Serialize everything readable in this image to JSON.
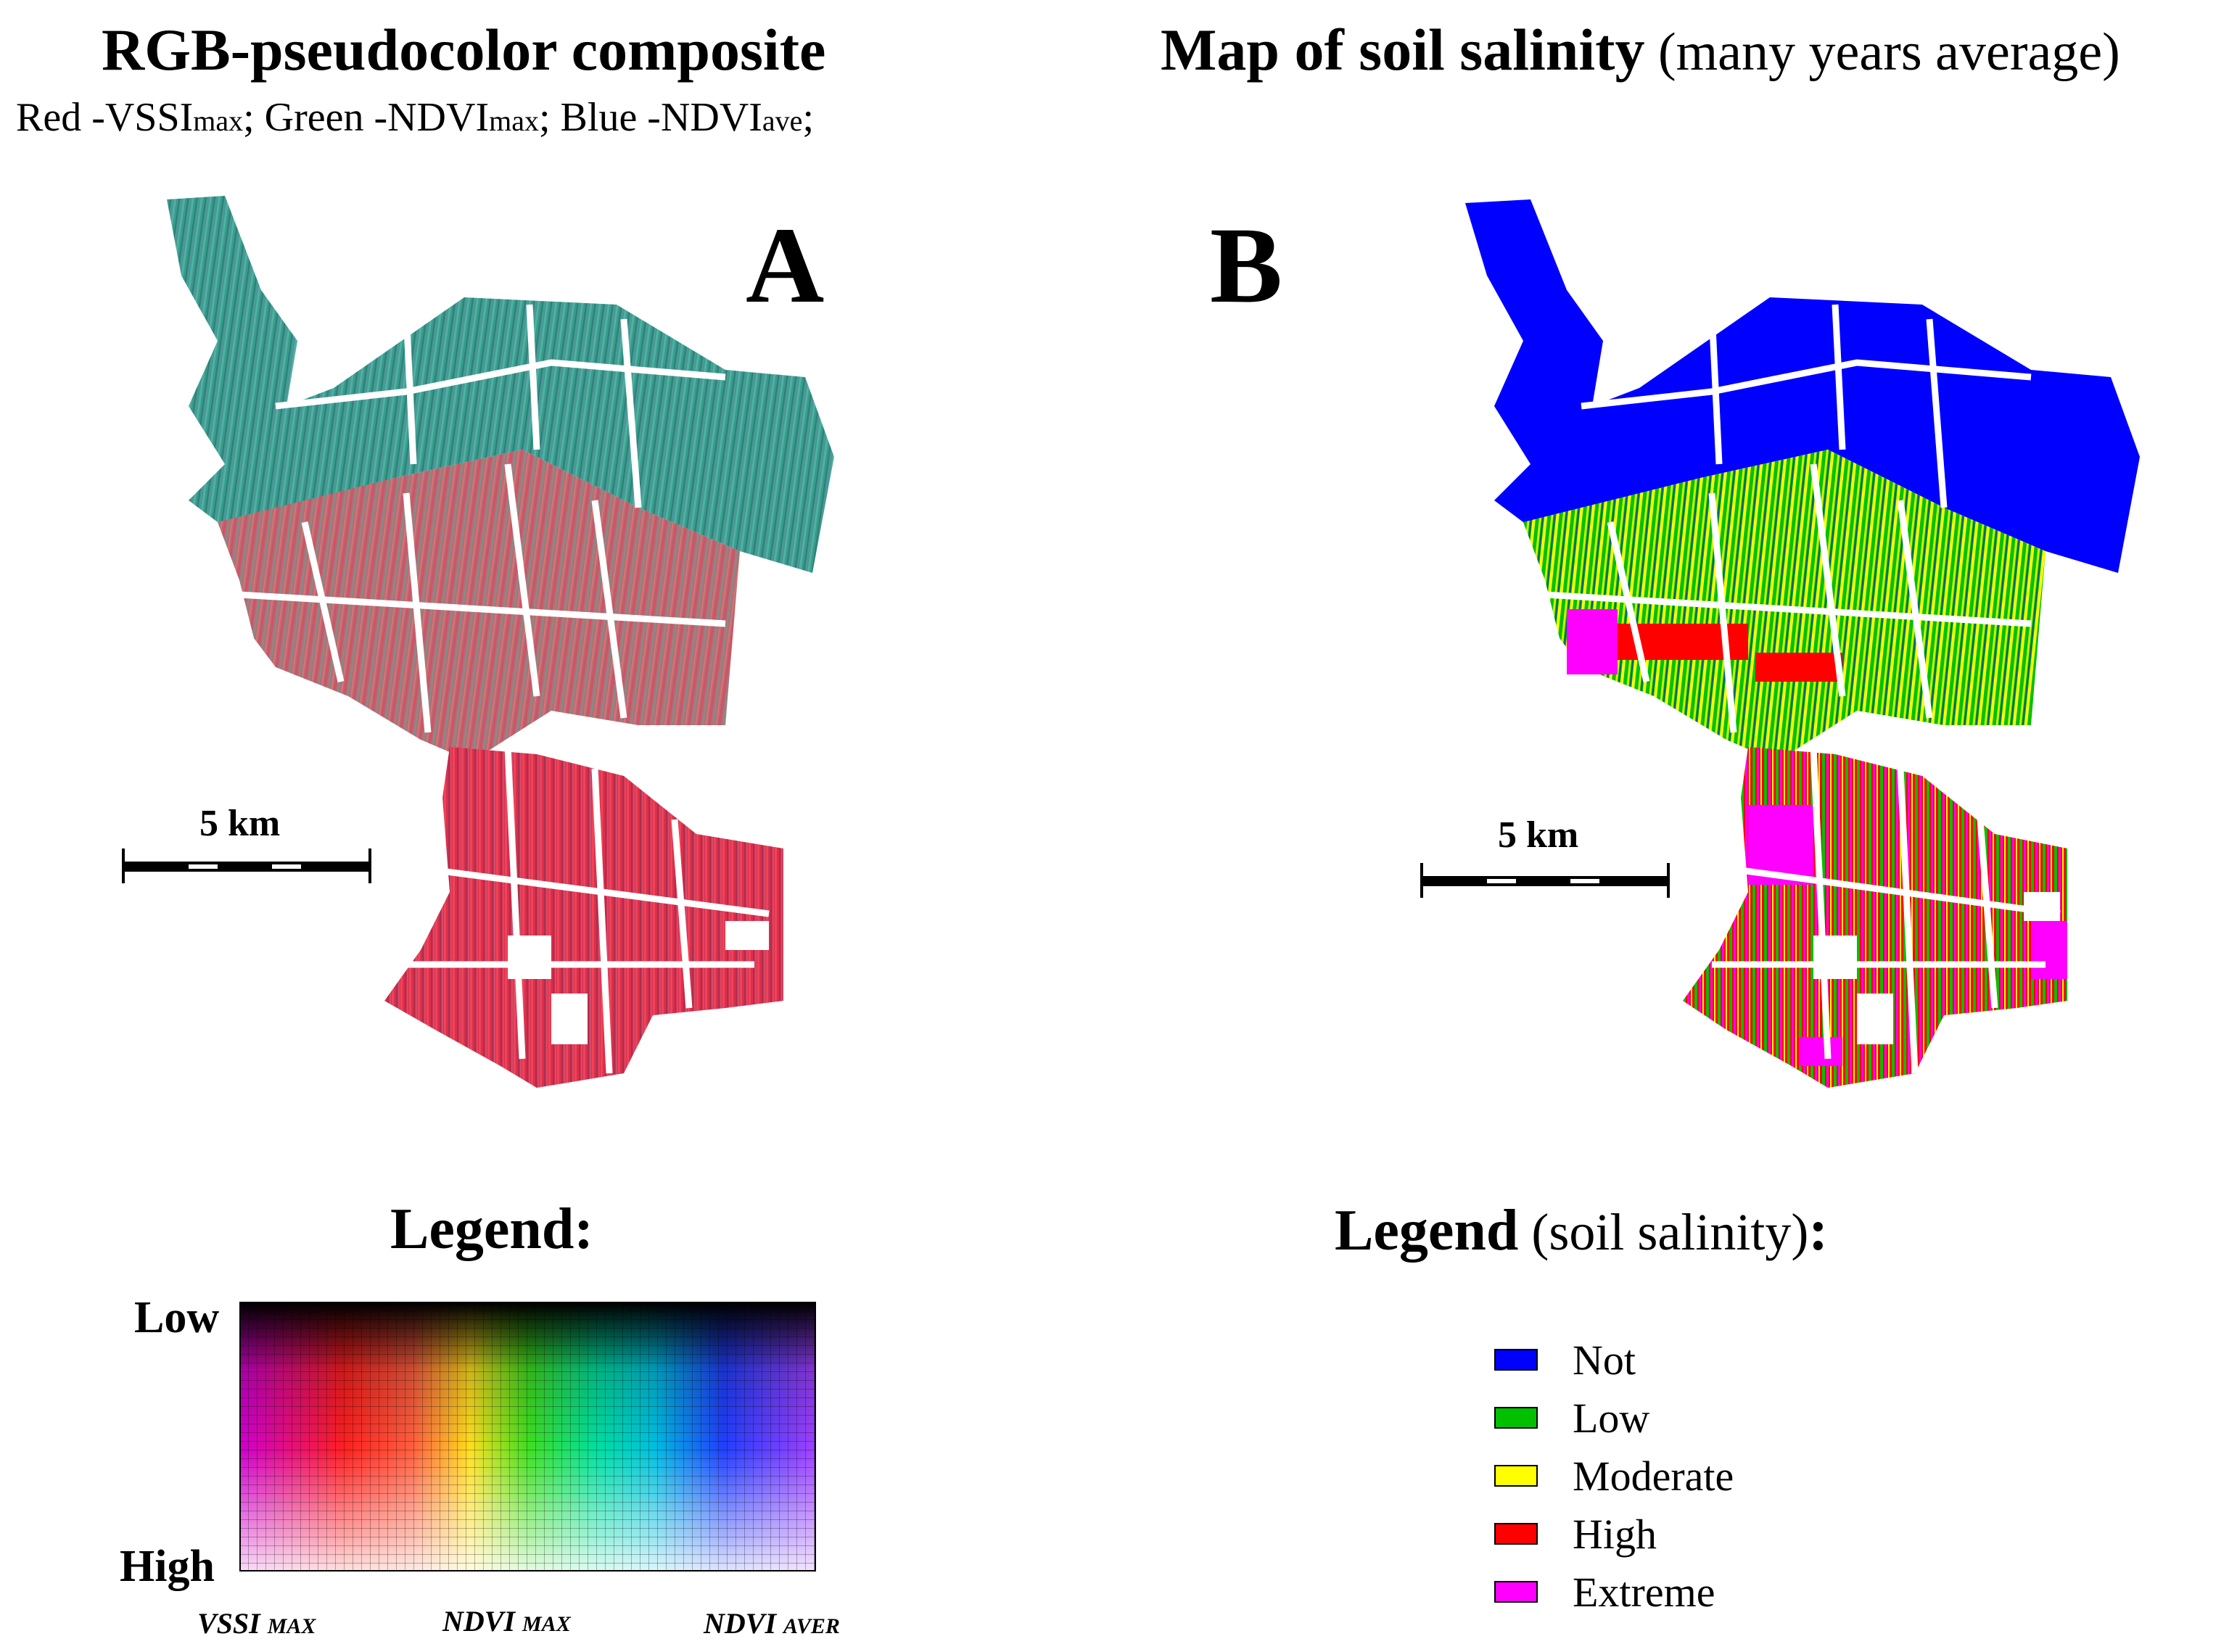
{
  "panel_a": {
    "title": "RGB-pseudocolor composite",
    "subtitle": {
      "red_prefix": "Red -VSSI",
      "red_sub": "max",
      "green_prefix": "; Green -NDVI",
      "green_sub": "max",
      "blue_prefix": "; Blue -NDVI",
      "blue_sub": "ave",
      "end": ";"
    },
    "letter": "A",
    "scale_bar": "5 km",
    "legend": {
      "title": "Legend:",
      "top_label": "Low",
      "bottom_label": "High",
      "x_labels": [
        {
          "main": "VSSI ",
          "small": "MAX"
        },
        {
          "main": "NDVI ",
          "small": "MAX"
        },
        {
          "main": "NDVI ",
          "small": "AVER"
        }
      ]
    }
  },
  "panel_b": {
    "title_bold": "Map of soil salinity",
    "title_light": " (many years average)",
    "letter": "B",
    "scale_bar": "5 km",
    "legend": {
      "title_bold": "Legend",
      "title_light": " (soil salinity)",
      "title_end": ":",
      "items": [
        {
          "label": "Not",
          "color": "#0000ff"
        },
        {
          "label": "Low",
          "color": "#00c000"
        },
        {
          "label": "Moderate",
          "color": "#ffff00"
        },
        {
          "label": "High",
          "color": "#ff0000"
        },
        {
          "label": "Extreme",
          "color": "#ff00ff"
        }
      ]
    }
  },
  "colors": {
    "composite_red": "#d6304c",
    "composite_teal": "#2f9a8c",
    "not_saline": "#0000ff",
    "low": "#00c000",
    "moderate": "#ffff00",
    "high": "#ff0000",
    "extreme": "#ff00ff"
  }
}
